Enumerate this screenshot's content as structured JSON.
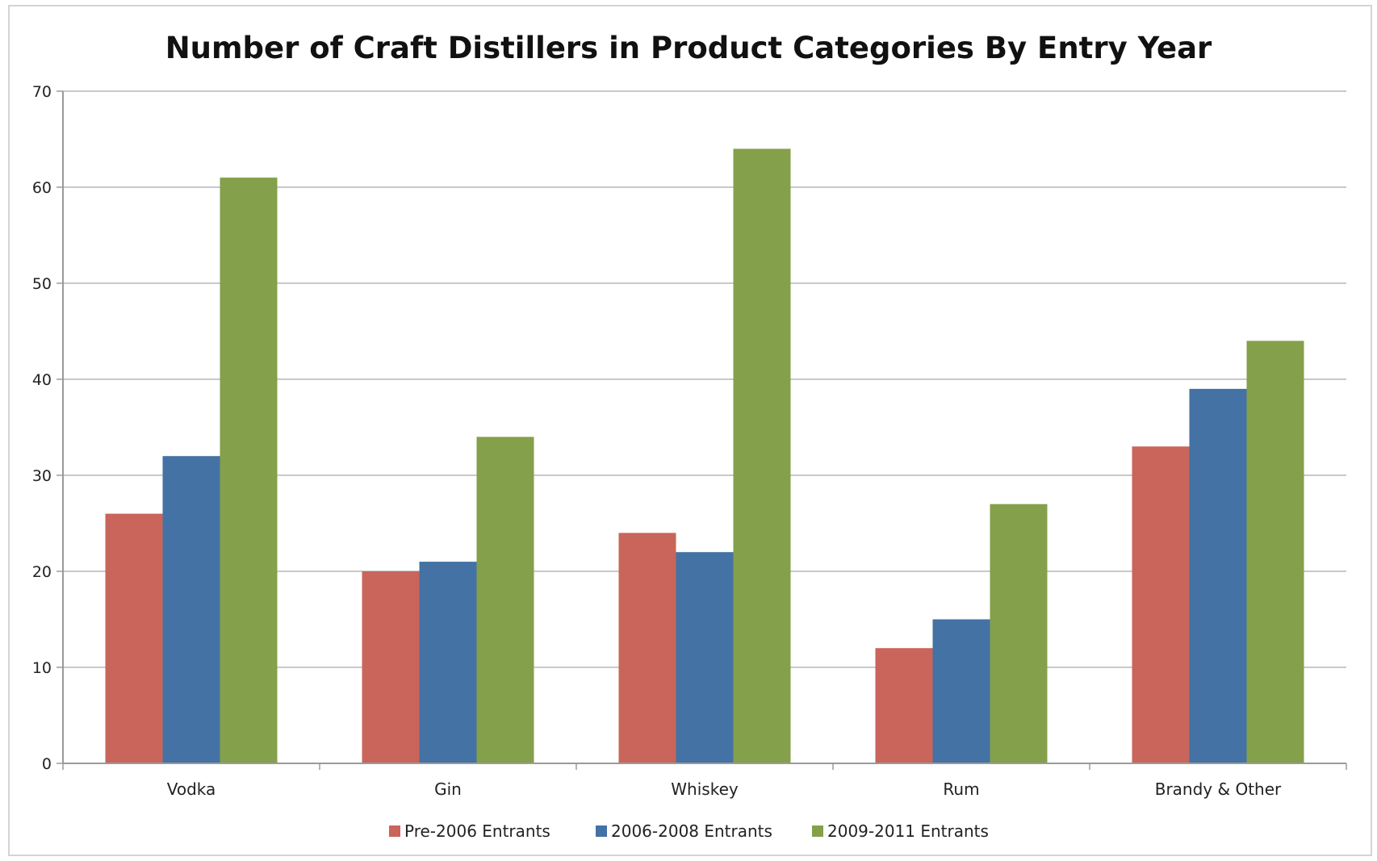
{
  "chart_data": {
    "type": "bar",
    "title": "Number of Craft Distillers in Product Categories By Entry Year",
    "xlabel": "",
    "ylabel": "",
    "categories": [
      "Vodka",
      "Gin",
      "Whiskey",
      "Rum",
      "Brandy & Other"
    ],
    "series": [
      {
        "name": "Pre-2006 Entrants",
        "color": "#c9655a",
        "values": [
          26,
          20,
          24,
          12,
          33
        ]
      },
      {
        "name": "2006-2008 Entrants",
        "color": "#4472a4",
        "values": [
          32,
          21,
          22,
          15,
          39
        ]
      },
      {
        "name": "2009-2011 Entrants",
        "color": "#84a04a",
        "values": [
          61,
          34,
          64,
          27,
          44
        ]
      }
    ],
    "ylim": [
      0,
      70
    ],
    "yticks": [
      "0",
      "10",
      "20",
      "30",
      "40",
      "50",
      "60",
      "70"
    ],
    "grid": true,
    "legend_position": "bottom"
  }
}
